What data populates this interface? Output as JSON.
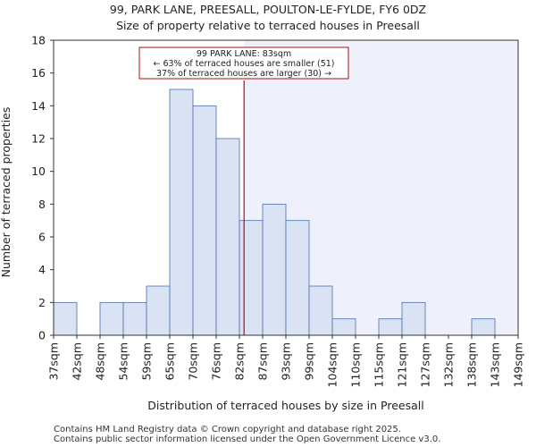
{
  "chart_data": {
    "type": "bar",
    "title": "99, PARK LANE, PREESALL, POULTON-LE-FYLDE, FY6 0DZ",
    "subtitle": "Size of property relative to terraced houses in Preesall",
    "xlabel": "Distribution of terraced houses by size in Preesall",
    "ylabel": "Number of terraced properties",
    "ylim": [
      0,
      18
    ],
    "y_ticks": [
      "0",
      "2",
      "4",
      "6",
      "8",
      "10",
      "12",
      "14",
      "16",
      "18"
    ],
    "x_tick_labels": [
      "37sqm",
      "42sqm",
      "48sqm",
      "54sqm",
      "59sqm",
      "65sqm",
      "70sqm",
      "76sqm",
      "82sqm",
      "87sqm",
      "93sqm",
      "99sqm",
      "104sqm",
      "110sqm",
      "115sqm",
      "121sqm",
      "127sqm",
      "132sqm",
      "138sqm",
      "143sqm",
      "149sqm"
    ],
    "values": [
      2,
      0,
      2,
      2,
      3,
      15,
      14,
      12,
      7,
      8,
      7,
      3,
      1,
      0,
      1,
      2,
      0,
      0,
      1,
      0
    ],
    "marker": {
      "value_sqm": 83,
      "bin_position": 8.2,
      "color": "#aa1111",
      "annotation_lines": [
        "99 PARK LANE: 83sqm",
        "← 63% of terraced houses are smaller (51)",
        "37% of terraced houses are larger (30) →"
      ]
    },
    "colors": {
      "bar_fill": "#dae3f3",
      "bar_stroke": "#4a6fb0",
      "shade_fill": "#eef1fb"
    },
    "footer": [
      "Contains HM Land Registry data © Crown copyright and database right 2025.",
      "Contains public sector information licensed under the Open Government Licence v3.0."
    ]
  }
}
